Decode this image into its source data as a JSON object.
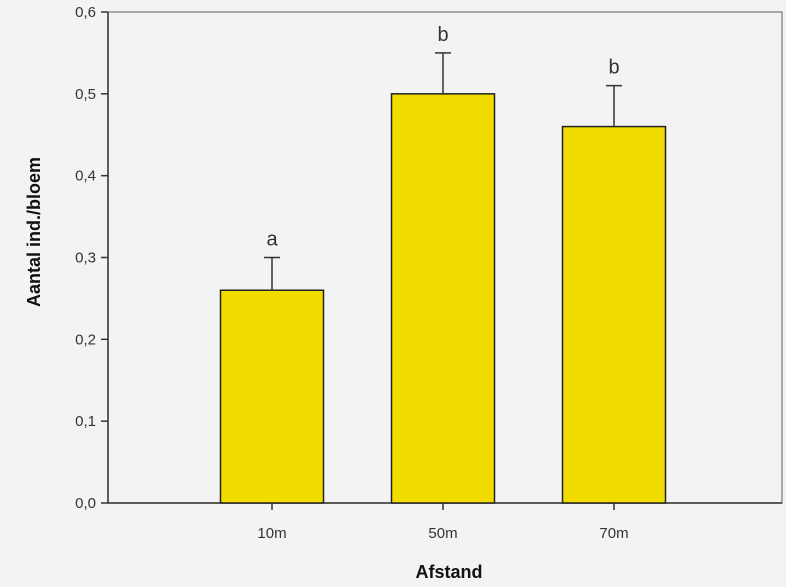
{
  "chart_data": {
    "type": "bar",
    "categories": [
      "10m",
      "50m",
      "70m"
    ],
    "values": [
      0.26,
      0.5,
      0.46
    ],
    "error_upper": [
      0.3,
      0.55,
      0.51
    ],
    "significance_labels": [
      "a",
      "b",
      "b"
    ],
    "title": "",
    "xlabel": "Afstand",
    "ylabel": "Aantal ind./bloem",
    "ylim": [
      0,
      0.6
    ],
    "y_ticks": [
      0.0,
      0.1,
      0.2,
      0.3,
      0.4,
      0.5,
      0.6
    ],
    "y_tick_labels": [
      "0,0",
      "0,1",
      "0,2",
      "0,3",
      "0,4",
      "0,5",
      "0,6"
    ],
    "grid": false,
    "legend": "none",
    "colors": {
      "bar_fill": "#f2dc00",
      "bar_stroke": "#222222",
      "axis": "#333333",
      "background": "#f3f3f3"
    }
  }
}
